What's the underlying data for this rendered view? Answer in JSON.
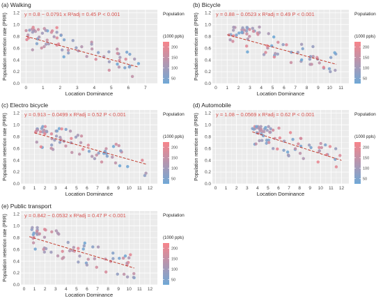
{
  "figure": {
    "colors": {
      "panel_bg": "#ebebeb",
      "grid": "#ffffff",
      "fit_line": "#c0392b",
      "equation": "#d9534f",
      "low": "#6fa8d6",
      "high": "#f7848a"
    }
  },
  "chart_data": [
    {
      "type": "scatter",
      "label": "(a) Walking",
      "equation": "y = 0.8 − 0.0791 x   R²adj = 0.45   P < 0.001",
      "xlabel": "Location Dominance",
      "ylabel": "Population retention rate (PRR)",
      "xlim": [
        -0.3,
        7.7
      ],
      "ylim": [
        0,
        1.25
      ],
      "x_ticks": [
        "0",
        "1",
        "2",
        "3",
        "4",
        "5",
        "6",
        "7"
      ],
      "y_ticks": [
        "0.0",
        "0.2",
        "0.4",
        "0.6",
        "0.8",
        "1.0",
        "1.2"
      ],
      "fit": {
        "intercept": 0.8,
        "slope": -0.0791,
        "x_range": [
          0,
          6.6
        ]
      },
      "seed": 3,
      "legend": {
        "title": "Population",
        "subtitle": "(1000 ppls)",
        "ticks": [
          "50",
          "100",
          "150",
          "200"
        ]
      }
    },
    {
      "type": "scatter",
      "label": "(b) Bicycle",
      "equation": "y = 0.88 − 0.0523 x   R²adj = 0.49   P < 0.001",
      "xlabel": "Location Dominance",
      "ylabel": "Population retention rate (PRR)",
      "xlim": [
        -0.3,
        11.7
      ],
      "ylim": [
        0,
        1.25
      ],
      "x_ticks": [
        "0",
        "1",
        "2",
        "3",
        "4",
        "5",
        "6",
        "7",
        "8",
        "9",
        "10",
        "11"
      ],
      "y_ticks": [
        "0.0",
        "0.2",
        "0.4",
        "0.6",
        "0.8",
        "1.0",
        "1.2"
      ],
      "fit": {
        "intercept": 0.88,
        "slope": -0.0523,
        "x_range": [
          1,
          10.6
        ]
      },
      "seed": 7,
      "legend": {
        "title": "Population",
        "subtitle": "(1000 ppls)",
        "ticks": [
          "50",
          "100",
          "150",
          "200"
        ]
      }
    },
    {
      "type": "scatter",
      "label": "(c) Electro bicycle",
      "equation": "y = 0.913 − 0.0499 x   R²adj = 0.52   P < 0.001",
      "xlabel": "Location Dominance",
      "ylabel": "Population retention rate (PRR)",
      "xlim": [
        -0.3,
        12.7
      ],
      "ylim": [
        0,
        1.25
      ],
      "x_ticks": [
        "0",
        "1",
        "2",
        "3",
        "4",
        "5",
        "6",
        "7",
        "8",
        "9",
        "10",
        "11",
        "12"
      ],
      "y_ticks": [
        "0.0",
        "0.2",
        "0.4",
        "0.6",
        "0.8",
        "1.0",
        "1.2"
      ],
      "fit": {
        "intercept": 0.913,
        "slope": -0.0499,
        "x_range": [
          1,
          11.7
        ]
      },
      "seed": 11,
      "legend": {
        "title": "Population",
        "subtitle": "(1000 ppls)",
        "ticks": [
          "50",
          "100",
          "150",
          "200"
        ]
      }
    },
    {
      "type": "scatter",
      "label": "(d) Automobile",
      "equation": "y = 1.08 − 0.0569 x   R²adj = 0.62   P < 0.001",
      "xlabel": "Location Dominance",
      "ylabel": "Population retention rate (PRR)",
      "xlim": [
        -0.3,
        12.7
      ],
      "ylim": [
        0,
        1.25
      ],
      "x_ticks": [
        "0",
        "1",
        "2",
        "3",
        "4",
        "5",
        "6",
        "7",
        "8",
        "9",
        "10",
        "11",
        "12"
      ],
      "y_ticks": [
        "0.0",
        "0.2",
        "0.4",
        "0.6",
        "0.8",
        "1.0",
        "1.2"
      ],
      "fit": {
        "intercept": 1.08,
        "slope": -0.0569,
        "x_range": [
          3.5,
          12
        ]
      },
      "seed": 17,
      "legend": {
        "title": "Population",
        "subtitle": "(1000 ppls)",
        "ticks": [
          "50",
          "100",
          "150",
          "200"
        ]
      }
    },
    {
      "type": "scatter",
      "label": "(e) Public transport",
      "equation": "y = 0.842 − 0.0532 x   R²adj = 0.47   P < 0.001",
      "xlabel": "Location Dominance",
      "ylabel": "Population retention rate (PRR)",
      "xlim": [
        -0.3,
        12.7
      ],
      "ylim": [
        0,
        1.25
      ],
      "x_ticks": [
        "0",
        "1",
        "2",
        "3",
        "4",
        "5",
        "6",
        "7",
        "8",
        "9",
        "10",
        "11",
        "12"
      ],
      "y_ticks": [
        "0.0",
        "0.2",
        "0.4",
        "0.6",
        "0.8",
        "1.0",
        "1.2"
      ],
      "fit": {
        "intercept": 0.842,
        "slope": -0.0532,
        "x_range": [
          0.5,
          10.5
        ]
      },
      "seed": 23,
      "legend": {
        "title": "Population",
        "subtitle": "(1000 ppls)",
        "ticks": [
          "50",
          "100",
          "150",
          "200"
        ]
      }
    }
  ]
}
